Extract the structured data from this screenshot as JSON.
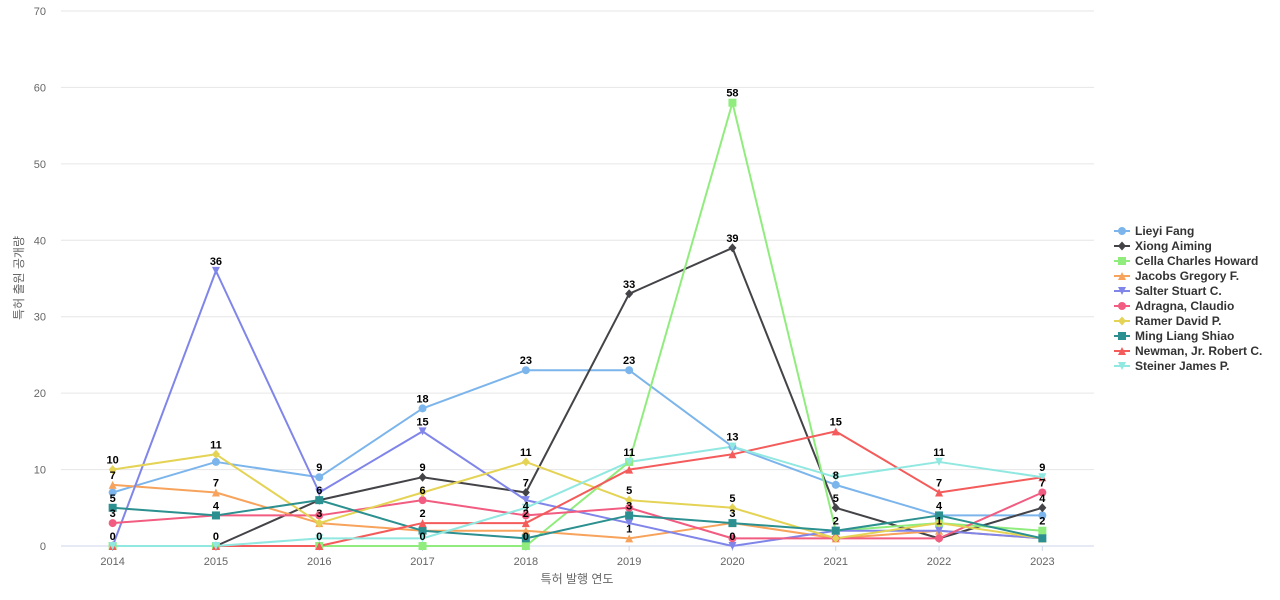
{
  "chart_data": {
    "type": "line",
    "title": "",
    "xlabel": "특허 발행 연도",
    "ylabel": "특허 출원 공개량",
    "ylim": [
      0,
      70
    ],
    "yticks": [
      0,
      10,
      20,
      30,
      40,
      50,
      60,
      70
    ],
    "x": [
      "2014",
      "2015",
      "2016",
      "2017",
      "2018",
      "2019",
      "2020",
      "2021",
      "2022",
      "2023"
    ],
    "grid": true,
    "legend_position": "right",
    "series": [
      {
        "name": "Lieyi Fang",
        "color": "#7cb5ec",
        "marker": "circle",
        "values": [
          7,
          11,
          9,
          18,
          23,
          23,
          13,
          8,
          4,
          4
        ]
      },
      {
        "name": "Xiong Aiming",
        "color": "#434348",
        "marker": "diamond",
        "values": [
          0,
          0,
          6,
          9,
          7,
          33,
          39,
          5,
          1,
          5
        ]
      },
      {
        "name": "Cella Charles Howard",
        "color": "#90ed7d",
        "marker": "square",
        "values": [
          0,
          0,
          0,
          0,
          0,
          11,
          58,
          2,
          3,
          2
        ]
      },
      {
        "name": "Jacobs Gregory F.",
        "color": "#f7a35c",
        "marker": "triangle",
        "values": [
          8,
          7,
          3,
          2,
          2,
          1,
          3,
          1,
          2,
          1
        ]
      },
      {
        "name": "Salter Stuart C.",
        "color": "#8085e9",
        "marker": "triangle-down",
        "values": [
          0,
          36,
          7,
          15,
          6,
          3,
          0,
          2,
          2,
          1
        ]
      },
      {
        "name": "Adragna, Claudio",
        "color": "#f15c80",
        "marker": "circle",
        "values": [
          3,
          4,
          4,
          6,
          4,
          5,
          1,
          1,
          1,
          7
        ]
      },
      {
        "name": "Ramer David P.",
        "color": "#e4d354",
        "marker": "diamond",
        "values": [
          10,
          12,
          3,
          7,
          11,
          6,
          5,
          1,
          3,
          1
        ]
      },
      {
        "name": "Ming Liang Shiao",
        "color": "#2b908f",
        "marker": "square",
        "values": [
          5,
          4,
          6,
          2,
          1,
          4,
          3,
          2,
          4,
          1
        ]
      },
      {
        "name": "Newman, Jr. Robert C.",
        "color": "#f45b5b",
        "marker": "triangle",
        "values": [
          0,
          0,
          0,
          3,
          3,
          10,
          12,
          15,
          7,
          9
        ]
      },
      {
        "name": "Steiner James P.",
        "color": "#91e8e1",
        "marker": "triangle-down",
        "values": [
          0,
          0,
          1,
          1,
          5,
          11,
          13,
          9,
          11,
          9
        ]
      }
    ],
    "data_labels": [
      {
        "x": "2014",
        "y": 10,
        "text": "10"
      },
      {
        "x": "2014",
        "y": 8,
        "text": "7"
      },
      {
        "x": "2014",
        "y": 5,
        "text": "5"
      },
      {
        "x": "2014",
        "y": 3,
        "text": "3"
      },
      {
        "x": "2014",
        "y": 0,
        "text": "0"
      },
      {
        "x": "2015",
        "y": 36,
        "text": "36"
      },
      {
        "x": "2015",
        "y": 12,
        "text": "11"
      },
      {
        "x": "2015",
        "y": 7,
        "text": "7"
      },
      {
        "x": "2015",
        "y": 4,
        "text": "4"
      },
      {
        "x": "2015",
        "y": 0,
        "text": "0"
      },
      {
        "x": "2016",
        "y": 9,
        "text": "9"
      },
      {
        "x": "2016",
        "y": 6,
        "text": "6"
      },
      {
        "x": "2016",
        "y": 3,
        "text": "3"
      },
      {
        "x": "2016",
        "y": 0,
        "text": "0"
      },
      {
        "x": "2017",
        "y": 18,
        "text": "18"
      },
      {
        "x": "2017",
        "y": 15,
        "text": "15"
      },
      {
        "x": "2017",
        "y": 9,
        "text": "9"
      },
      {
        "x": "2017",
        "y": 6,
        "text": "6"
      },
      {
        "x": "2017",
        "y": 3,
        "text": "2"
      },
      {
        "x": "2017",
        "y": 0,
        "text": "0"
      },
      {
        "x": "2018",
        "y": 23,
        "text": "23"
      },
      {
        "x": "2018",
        "y": 11,
        "text": "11"
      },
      {
        "x": "2018",
        "y": 7,
        "text": "7"
      },
      {
        "x": "2018",
        "y": 4,
        "text": "4"
      },
      {
        "x": "2018",
        "y": 3,
        "text": "2"
      },
      {
        "x": "2018",
        "y": 0,
        "text": "0"
      },
      {
        "x": "2019",
        "y": 33,
        "text": "33"
      },
      {
        "x": "2019",
        "y": 23,
        "text": "23"
      },
      {
        "x": "2019",
        "y": 11,
        "text": "11"
      },
      {
        "x": "2019",
        "y": 6,
        "text": "5"
      },
      {
        "x": "2019",
        "y": 4,
        "text": "3"
      },
      {
        "x": "2019",
        "y": 1,
        "text": "1"
      },
      {
        "x": "2020",
        "y": 58,
        "text": "58"
      },
      {
        "x": "2020",
        "y": 39,
        "text": "39"
      },
      {
        "x": "2020",
        "y": 13,
        "text": "13"
      },
      {
        "x": "2020",
        "y": 5,
        "text": "5"
      },
      {
        "x": "2020",
        "y": 3,
        "text": "3"
      },
      {
        "x": "2020",
        "y": 0,
        "text": "0"
      },
      {
        "x": "2021",
        "y": 15,
        "text": "15"
      },
      {
        "x": "2021",
        "y": 8,
        "text": "8"
      },
      {
        "x": "2021",
        "y": 5,
        "text": "5"
      },
      {
        "x": "2021",
        "y": 2,
        "text": "2"
      },
      {
        "x": "2022",
        "y": 11,
        "text": "11"
      },
      {
        "x": "2022",
        "y": 7,
        "text": "7"
      },
      {
        "x": "2022",
        "y": 4,
        "text": "4"
      },
      {
        "x": "2022",
        "y": 2,
        "text": "1"
      },
      {
        "x": "2023",
        "y": 9,
        "text": "9"
      },
      {
        "x": "2023",
        "y": 7,
        "text": "7"
      },
      {
        "x": "2023",
        "y": 5,
        "text": "4"
      },
      {
        "x": "2023",
        "y": 2,
        "text": "2"
      }
    ]
  }
}
